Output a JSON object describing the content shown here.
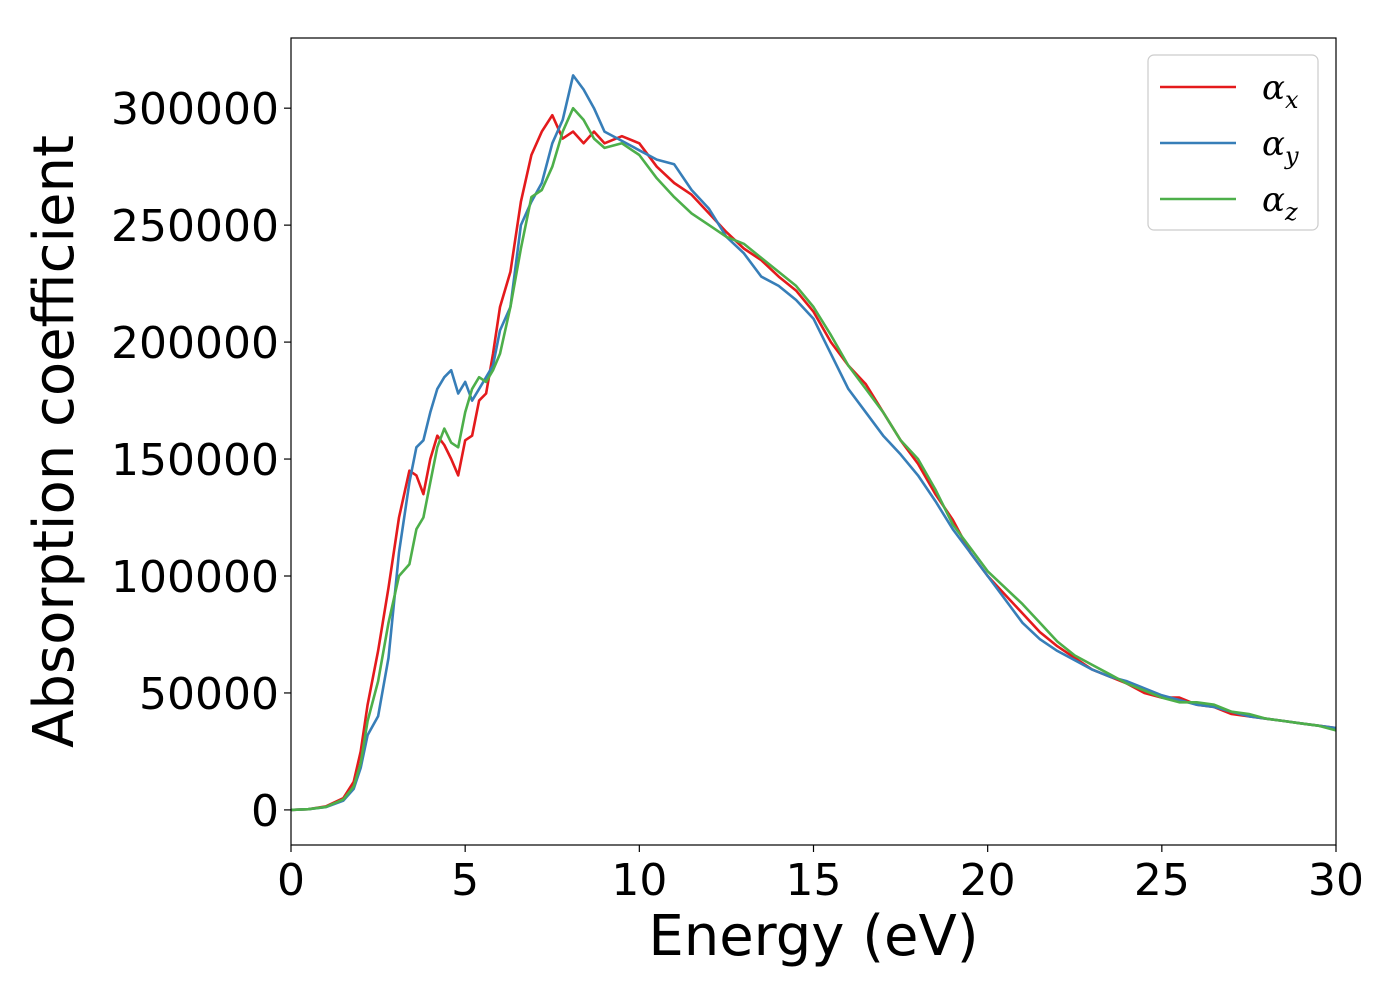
{
  "chart_data": {
    "type": "line",
    "title": "",
    "xlabel": "Energy (eV)",
    "ylabel": "Absorption coefficient",
    "xlim": [
      0,
      30
    ],
    "ylim": [
      -15000,
      330000
    ],
    "xticks": [
      "0",
      "5",
      "10",
      "15",
      "20",
      "25",
      "30"
    ],
    "yticks": [
      "0",
      "50000",
      "100000",
      "150000",
      "200000",
      "250000",
      "300000"
    ],
    "grid": false,
    "legend_position": "top-right",
    "legend_entries": [
      {
        "symbol": "α",
        "subscript": "x"
      },
      {
        "symbol": "α",
        "subscript": "y"
      },
      {
        "symbol": "α",
        "subscript": "z"
      }
    ],
    "series": [
      {
        "color": "#e41a1c",
        "x": [
          0,
          0.5,
          1,
          1.5,
          1.8,
          2.0,
          2.2,
          2.5,
          2.8,
          3.1,
          3.4,
          3.6,
          3.8,
          4.0,
          4.2,
          4.4,
          4.6,
          4.8,
          5.0,
          5.2,
          5.4,
          5.6,
          5.8,
          6.0,
          6.3,
          6.6,
          6.9,
          7.2,
          7.5,
          7.8,
          8.1,
          8.4,
          8.7,
          9.0,
          9.5,
          10.0,
          10.5,
          11.0,
          11.5,
          12.0,
          12.5,
          13.0,
          13.5,
          14.0,
          14.5,
          15.0,
          15.5,
          16.0,
          16.5,
          17.0,
          17.5,
          18.0,
          18.5,
          19.0,
          19.5,
          20.0,
          20.5,
          21.0,
          21.5,
          22.0,
          22.5,
          23.0,
          23.5,
          24.0,
          24.5,
          25.0,
          25.5,
          26.0,
          26.5,
          27.0,
          27.5,
          28.0,
          28.5,
          29.0,
          29.5,
          30.0
        ],
        "y": [
          0,
          300,
          1500,
          5000,
          12000,
          25000,
          45000,
          68000,
          95000,
          125000,
          145000,
          143000,
          135000,
          150000,
          160000,
          156000,
          150000,
          143000,
          158000,
          160000,
          175000,
          178000,
          195000,
          215000,
          230000,
          260000,
          280000,
          290000,
          297000,
          287000,
          290000,
          285000,
          290000,
          285000,
          288000,
          285000,
          275000,
          268000,
          263000,
          255000,
          247000,
          240000,
          235000,
          228000,
          222000,
          213000,
          200000,
          190000,
          182000,
          170000,
          158000,
          148000,
          135000,
          124000,
          110000,
          100000,
          92000,
          84000,
          76000,
          70000,
          65000,
          60000,
          57000,
          54000,
          50000,
          48000,
          48000,
          45000,
          44000,
          41000,
          40000,
          39000,
          38000,
          37000,
          36000,
          35000
        ]
      },
      {
        "color": "#377eb8",
        "x": [
          0,
          0.5,
          1,
          1.5,
          1.8,
          2.0,
          2.2,
          2.5,
          2.8,
          3.1,
          3.4,
          3.6,
          3.8,
          4.0,
          4.2,
          4.4,
          4.6,
          4.8,
          5.0,
          5.2,
          5.4,
          5.6,
          5.8,
          6.0,
          6.3,
          6.6,
          6.9,
          7.2,
          7.5,
          7.8,
          8.1,
          8.4,
          8.7,
          9.0,
          9.5,
          10.0,
          10.5,
          11.0,
          11.5,
          12.0,
          12.5,
          13.0,
          13.5,
          14.0,
          14.5,
          15.0,
          15.5,
          16.0,
          16.5,
          17.0,
          17.5,
          18.0,
          18.5,
          19.0,
          19.5,
          20.0,
          20.5,
          21.0,
          21.5,
          22.0,
          22.5,
          23.0,
          23.5,
          24.0,
          24.5,
          25.0,
          25.5,
          26.0,
          26.5,
          27.0,
          27.5,
          28.0,
          28.5,
          29.0,
          29.5,
          30.0
        ],
        "y": [
          0,
          300,
          1200,
          4000,
          9000,
          18000,
          32000,
          40000,
          65000,
          110000,
          140000,
          155000,
          158000,
          170000,
          180000,
          185000,
          188000,
          178000,
          183000,
          175000,
          180000,
          185000,
          190000,
          205000,
          215000,
          250000,
          260000,
          268000,
          285000,
          295000,
          314000,
          308000,
          300000,
          290000,
          286000,
          282000,
          278000,
          276000,
          265000,
          257000,
          245000,
          238000,
          228000,
          224000,
          218000,
          210000,
          195000,
          180000,
          170000,
          160000,
          152000,
          143000,
          132000,
          120000,
          110000,
          100000,
          90000,
          80000,
          73000,
          68000,
          64000,
          60000,
          57000,
          55000,
          52000,
          49000,
          47000,
          45000,
          44000,
          42000,
          40000,
          39000,
          38000,
          37000,
          36000,
          35000
        ]
      },
      {
        "color": "#4daf4a",
        "x": [
          0,
          0.5,
          1,
          1.5,
          1.8,
          2.0,
          2.2,
          2.5,
          2.8,
          3.1,
          3.4,
          3.6,
          3.8,
          4.0,
          4.2,
          4.4,
          4.6,
          4.8,
          5.0,
          5.2,
          5.4,
          5.6,
          5.8,
          6.0,
          6.3,
          6.6,
          6.9,
          7.2,
          7.5,
          7.8,
          8.1,
          8.4,
          8.7,
          9.0,
          9.5,
          10.0,
          10.5,
          11.0,
          11.5,
          12.0,
          12.5,
          13.0,
          13.5,
          14.0,
          14.5,
          15.0,
          15.5,
          16.0,
          16.5,
          17.0,
          17.5,
          18.0,
          18.5,
          19.0,
          19.5,
          20.0,
          20.5,
          21.0,
          21.5,
          22.0,
          22.5,
          23.0,
          23.5,
          24.0,
          24.5,
          25.0,
          25.5,
          26.0,
          26.5,
          27.0,
          27.5,
          28.0,
          28.5,
          29.0,
          29.5,
          30.0
        ],
        "y": [
          0,
          300,
          1300,
          4500,
          10000,
          20000,
          38000,
          55000,
          80000,
          100000,
          105000,
          120000,
          125000,
          140000,
          155000,
          163000,
          157000,
          155000,
          170000,
          180000,
          185000,
          183000,
          188000,
          195000,
          215000,
          240000,
          262000,
          265000,
          275000,
          290000,
          300000,
          295000,
          287000,
          283000,
          285000,
          280000,
          270000,
          262000,
          255000,
          250000,
          245000,
          242000,
          236000,
          230000,
          224000,
          215000,
          203000,
          190000,
          180000,
          170000,
          158000,
          150000,
          137000,
          122000,
          112000,
          102000,
          95000,
          88000,
          80000,
          72000,
          66000,
          62000,
          58000,
          54000,
          51000,
          48000,
          46000,
          46000,
          45000,
          42000,
          41000,
          39000,
          38000,
          37000,
          36000,
          34000
        ]
      }
    ]
  }
}
